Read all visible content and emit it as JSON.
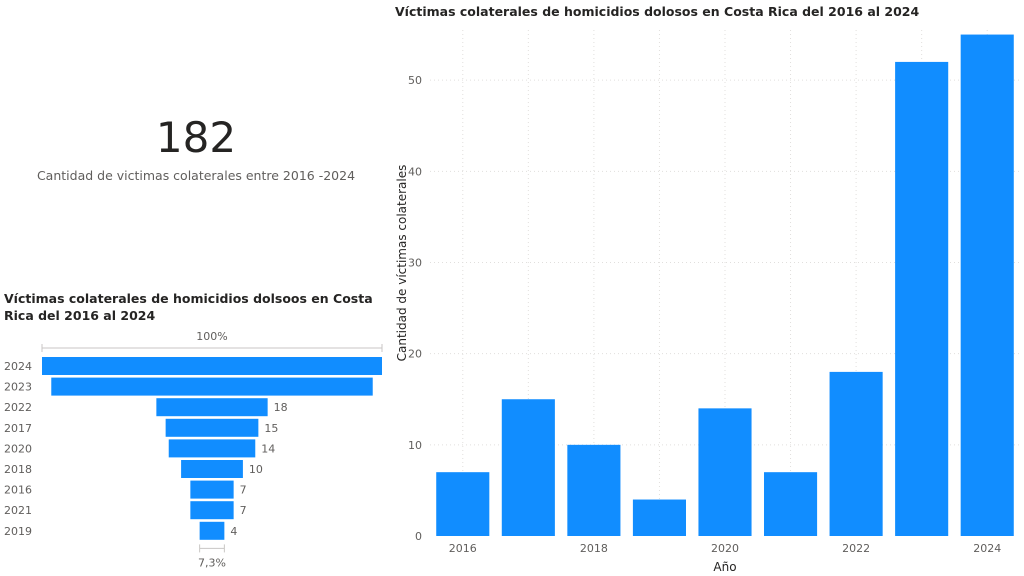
{
  "kpi": {
    "value": "182",
    "label": "Cantidad de victimas colaterales entre 2016 -2024"
  },
  "funnel": {
    "title": "Víctimas colaterales de homicidios dolsoos en Costa Rica del 2016 al 2024",
    "top_label": "100%",
    "bottom_label": "7,3%"
  },
  "chart_data": [
    {
      "type": "bar",
      "orientation": "horizontal-funnel",
      "title": "Víctimas colaterales de homicidios dolsoos en Costa Rica del 2016 al 2024",
      "categories": [
        "2024",
        "2023",
        "2022",
        "2017",
        "2020",
        "2018",
        "2016",
        "2021",
        "2019"
      ],
      "values": [
        55,
        52,
        18,
        15,
        14,
        10,
        7,
        7,
        4
      ],
      "data_labels": [
        "",
        "",
        "18",
        "15",
        "14",
        "10",
        "7",
        "7",
        "4"
      ],
      "color": "#118dff"
    },
    {
      "type": "bar",
      "title": "Víctimas colaterales de homicidios dolosos en Costa Rica del 2016 al 2024",
      "xlabel": "Año",
      "ylabel": "Cantidad de víctimas colaterales",
      "categories": [
        "2016",
        "2017",
        "2018",
        "2019",
        "2020",
        "2021",
        "2022",
        "2023",
        "2024"
      ],
      "values": [
        7,
        15,
        10,
        4,
        14,
        7,
        18,
        52,
        55
      ],
      "xticks": [
        "2016",
        "2018",
        "2020",
        "2022",
        "2024"
      ],
      "yticks": [
        0,
        10,
        20,
        30,
        40,
        50
      ],
      "ylim": [
        0,
        55.5
      ],
      "grid": true,
      "color": "#118dff"
    }
  ]
}
